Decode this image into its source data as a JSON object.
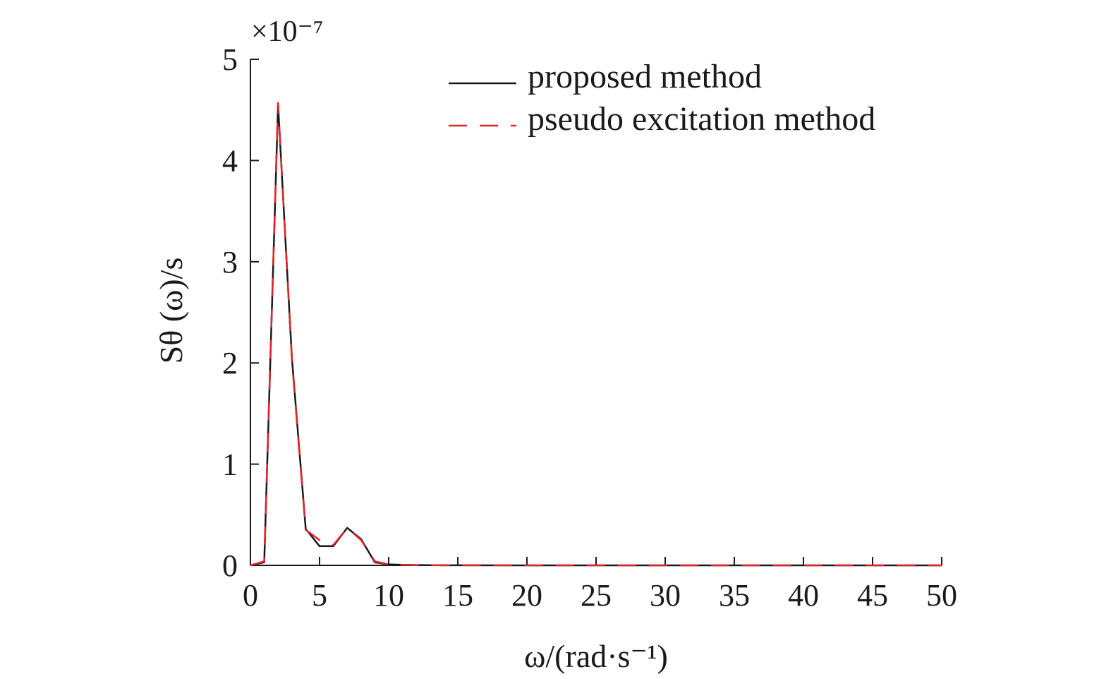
{
  "chart_data": {
    "type": "line",
    "title": "",
    "xlabel": "ω/(rad·s⁻¹)",
    "ylabel": "Sθ (ω)/s",
    "y_multiplier": "×10⁻⁷",
    "xlim": [
      0,
      50
    ],
    "ylim": [
      0,
      5
    ],
    "x_ticks": [
      0,
      5,
      10,
      15,
      20,
      25,
      30,
      35,
      40,
      45,
      50
    ],
    "x_tick_labels": [
      "0",
      "5",
      "10",
      "15",
      "20",
      "25",
      "30",
      "35",
      "40",
      "45",
      "50"
    ],
    "y_ticks": [
      0,
      1,
      2,
      3,
      4,
      5
    ],
    "y_tick_labels": [
      "0",
      "1",
      "2",
      "3",
      "4",
      "5"
    ],
    "grid": false,
    "legend_position": "top-right",
    "x": [
      0,
      1,
      2,
      3,
      4,
      5,
      6,
      7,
      8,
      9,
      10,
      11,
      12,
      13,
      14,
      15,
      20,
      25,
      30,
      35,
      40,
      45,
      50
    ],
    "series": [
      {
        "name": "proposed method",
        "color": "#1a1a1a",
        "dash": "solid",
        "values": [
          0,
          0.03,
          4.55,
          2.05,
          0.36,
          0.19,
          0.19,
          0.37,
          0.26,
          0.03,
          0.01,
          0.005,
          0.003,
          0.002,
          0.001,
          0.001,
          0,
          0,
          0,
          0,
          0,
          0,
          0
        ]
      },
      {
        "name": "pseudo excitation method",
        "color": "#e0242c",
        "dash": "dashed",
        "values": [
          0,
          0.04,
          4.57,
          2.03,
          0.35,
          0.25,
          0.2,
          0.37,
          0.25,
          0.04,
          0.01,
          0.005,
          0.003,
          0.002,
          0.001,
          0.001,
          0,
          0,
          0,
          0,
          0,
          0,
          0
        ]
      }
    ]
  }
}
